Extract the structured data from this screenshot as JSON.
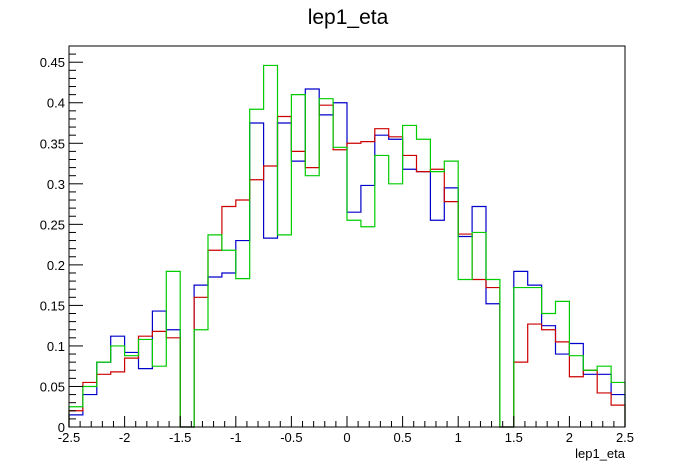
{
  "chart_data": {
    "type": "line",
    "title": "lep1_eta",
    "xlabel": "lep1_eta",
    "ylabel": "",
    "xlim": [
      -2.5,
      2.5
    ],
    "ylim": [
      0,
      0.47
    ],
    "grid": false,
    "x_ticks": [
      "-2.5",
      "-2",
      "-1.5",
      "-1",
      "-0.5",
      "0",
      "0.5",
      "1",
      "1.5",
      "2",
      "2.5"
    ],
    "y_ticks": [
      "0",
      "0.05",
      "0.1",
      "0.15",
      "0.2",
      "0.25",
      "0.3",
      "0.35",
      "0.4",
      "0.45"
    ],
    "bin_edges": [
      -2.5,
      -2.375,
      -2.25,
      -2.125,
      -2.0,
      -1.875,
      -1.75,
      -1.625,
      -1.5,
      -1.375,
      -1.25,
      -1.125,
      -1.0,
      -0.875,
      -0.75,
      -0.625,
      -0.5,
      -0.375,
      -0.25,
      -0.125,
      0.0,
      0.125,
      0.25,
      0.375,
      0.5,
      0.625,
      0.75,
      0.875,
      1.0,
      1.125,
      1.25,
      1.375,
      1.5,
      1.625,
      1.75,
      1.875,
      2.0,
      2.125,
      2.25,
      2.375,
      2.5
    ],
    "series": [
      {
        "color": "#0000cc",
        "values": [
          0.015,
          0.04,
          0.08,
          0.112,
          0.092,
          0.072,
          0.143,
          0.12,
          0,
          0.175,
          0.185,
          0.19,
          0.23,
          0.375,
          0.233,
          0.375,
          0.328,
          0.417,
          0.385,
          0.4,
          0.265,
          0.298,
          0.36,
          0.355,
          0.318,
          0.315,
          0.255,
          0.295,
          0.235,
          0.272,
          0.152,
          0,
          0.192,
          0.175,
          0.125,
          0.09,
          0.103,
          0.065,
          0.065,
          0.04
        ]
      },
      {
        "color": "#cc0000",
        "values": [
          0.02,
          0.055,
          0.065,
          0.068,
          0.085,
          0.112,
          0.118,
          0.11,
          0,
          0.16,
          0.218,
          0.272,
          0.28,
          0.305,
          0.322,
          0.383,
          0.34,
          0.32,
          0.397,
          0.342,
          0.35,
          0.352,
          0.368,
          0.358,
          0.335,
          0.315,
          0.318,
          0.278,
          0.238,
          0.182,
          0.172,
          0,
          0.08,
          0.127,
          0.12,
          0.105,
          0.062,
          0.07,
          0.042,
          0.027
        ]
      },
      {
        "color": "#00cc00",
        "values": [
          0.025,
          0.05,
          0.08,
          0.1,
          0.088,
          0.108,
          0.075,
          0.192,
          0,
          0.12,
          0.237,
          0.218,
          0.183,
          0.392,
          0.446,
          0.237,
          0.41,
          0.31,
          0.405,
          0.345,
          0.255,
          0.247,
          0.335,
          0.3,
          0.372,
          0.355,
          0.315,
          0.328,
          0.182,
          0.24,
          0.182,
          0,
          0.172,
          0.172,
          0.14,
          0.155,
          0.088,
          0.07,
          0.075,
          0.055
        ]
      }
    ]
  }
}
